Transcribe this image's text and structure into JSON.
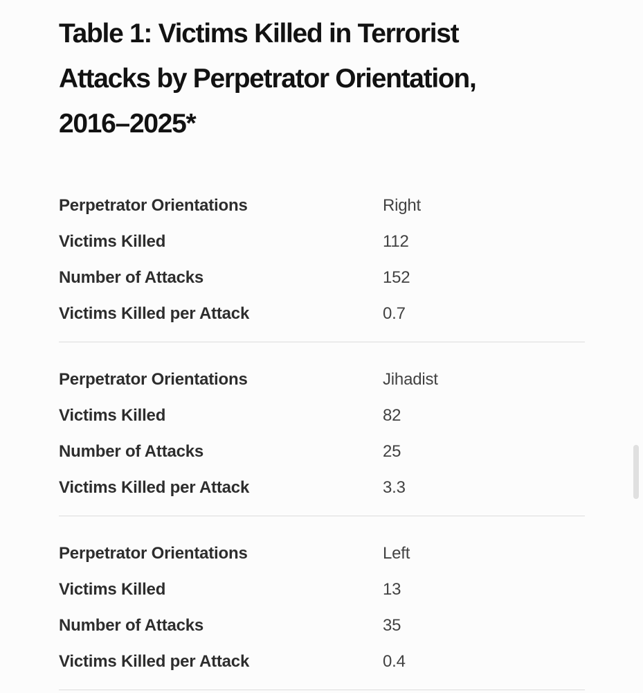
{
  "page": {
    "background": "#fcfcfc"
  },
  "title": {
    "full": "Table 1: Victims Killed in Terrorist Attacks by Perpetrator Orientation, 2016–2025*",
    "lines": [
      "Table 1: Victims Killed in Terrorist",
      "Attacks by Perpetrator Orientation,",
      "2016–2025*"
    ]
  },
  "table": {
    "groups": [
      {
        "rows": [
          {
            "label": "Perpetrator Orientations",
            "value": "Right"
          },
          {
            "label": "Victims Killed",
            "value": "112"
          },
          {
            "label": "Number of Attacks",
            "value": "152"
          },
          {
            "label": "Victims Killed per Attack",
            "value": "0.7"
          }
        ]
      },
      {
        "rows": [
          {
            "label": "Perpetrator Orientations",
            "value": "Jihadist"
          },
          {
            "label": "Victims Killed",
            "value": "82"
          },
          {
            "label": "Number of Attacks",
            "value": "25"
          },
          {
            "label": "Victims Killed per Attack",
            "value": "3.3"
          }
        ]
      },
      {
        "rows": [
          {
            "label": "Perpetrator Orientations",
            "value": "Left"
          },
          {
            "label": "Victims Killed",
            "value": "13"
          },
          {
            "label": "Number of Attacks",
            "value": "35"
          },
          {
            "label": "Victims Killed per Attack",
            "value": "0.4"
          }
        ]
      }
    ]
  },
  "colors": {
    "title_text": "#121212",
    "label_text": "#2d2d2d",
    "value_text": "#424242",
    "divider": "#dcdcdc",
    "scrollbar_thumb": "#e0e0e0"
  }
}
